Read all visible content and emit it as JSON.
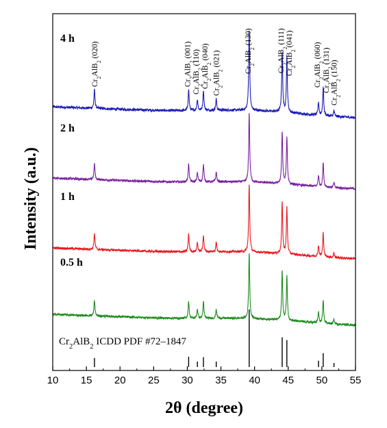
{
  "chart_data": {
    "type": "line",
    "xlabel": "2θ (degree)",
    "ylabel": "Intensity (a.u.)",
    "xlim": [
      10,
      55
    ],
    "xticks": [
      10,
      15,
      20,
      25,
      30,
      35,
      40,
      45,
      50,
      55
    ],
    "peaks": [
      {
        "x": 16.2,
        "label": "Cr2AlB2 (020)",
        "label_parts": [
          "Cr",
          "2",
          "AlB",
          "2",
          " (020)"
        ],
        "rel": 0.23
      },
      {
        "x": 30.2,
        "label": "Cr2AlB2 (001)",
        "label_parts": [
          "Cr",
          "2",
          "AlB",
          "2",
          " (001)"
        ],
        "rel": 0.26
      },
      {
        "x": 31.5,
        "label": "Cr2AlB2 (110)",
        "label_parts": [
          "Cr",
          "2",
          "AlB",
          "2",
          " (110)"
        ],
        "rel": 0.14
      },
      {
        "x": 32.4,
        "label": "Cr2AlB2 (040)",
        "label_parts": [
          "Cr",
          "2",
          "AlB",
          "2",
          " (040)"
        ],
        "rel": 0.25
      },
      {
        "x": 34.3,
        "label": "Cr2AlB2 (021)",
        "label_parts": [
          "Cr",
          "2",
          "AlB",
          "2",
          " (021)"
        ],
        "rel": 0.14
      },
      {
        "x": 39.2,
        "label": "Cr2AlB2 (130)",
        "label_parts": [
          "Cr",
          "2",
          "AlB",
          "2",
          " (130)"
        ],
        "rel": 1.0
      },
      {
        "x": 44.1,
        "label": "Cr2AlB2 (111)",
        "label_parts": [
          "Cr",
          "2",
          "AlB",
          "2",
          " (111)"
        ],
        "rel": 0.75
      },
      {
        "x": 44.8,
        "label": "Cr2AlB2 (041)",
        "label_parts": [
          "Cr",
          "2",
          "AlB",
          "2",
          " (041)"
        ],
        "rel": 0.68
      },
      {
        "x": 49.5,
        "label": "Cr2AlB2 (060)",
        "label_parts": [
          "Cr",
          "2",
          "AlB",
          "2",
          " (060)"
        ],
        "rel": 0.16
      },
      {
        "x": 50.2,
        "label": "Cr2AlB2 (131)",
        "label_parts": [
          "Cr",
          "2",
          "AlB",
          "2",
          " (131)"
        ],
        "rel": 0.35
      },
      {
        "x": 51.8,
        "label": "Cr2AlB2 (150)",
        "label_parts": [
          "Cr",
          "2",
          "AlB",
          "2",
          " (150)"
        ],
        "rel": 0.07
      }
    ],
    "series": [
      {
        "name": "4 h",
        "color": "#1a1ab4"
      },
      {
        "name": "2 h",
        "color": "#7a1fa0"
      },
      {
        "name": "1 h",
        "color": "#e8161e"
      },
      {
        "name": "0.5 h",
        "color": "#1a8a1a"
      }
    ],
    "reference": {
      "label_parts": [
        "Cr",
        "2",
        "AlB",
        "2",
        " ICDD PDF #72–1847"
      ],
      "color": "#000000"
    }
  }
}
